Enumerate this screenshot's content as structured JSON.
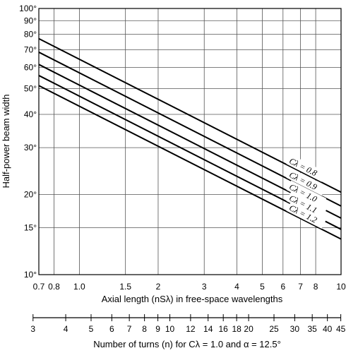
{
  "chart_data": {
    "type": "line",
    "xscale": "log",
    "yscale": "log",
    "xlim": [
      0.7,
      10
    ],
    "ylim": [
      10,
      100
    ],
    "grid": true,
    "xlabel": "Axial length (nS_λ) in free-space wavelengths",
    "ylabel": "Half-power beam width",
    "x_ticks": [
      "0.7",
      "0.8",
      "1.0",
      "1.5",
      "2",
      "3",
      "4",
      "5",
      "6",
      "7",
      "8",
      "10"
    ],
    "x_tick_values": [
      0.7,
      0.8,
      1.0,
      1.5,
      2,
      3,
      4,
      5,
      6,
      7,
      8,
      10
    ],
    "y_ticks": [
      "100°",
      "90°",
      "80°",
      "70°",
      "60°",
      "50°",
      "40°",
      "30°",
      "20°",
      "15°",
      "10°"
    ],
    "y_tick_values": [
      100,
      90,
      80,
      70,
      60,
      50,
      40,
      30,
      20,
      15,
      10
    ],
    "series": [
      {
        "name": "Cλ = 0.8",
        "points": [
          [
            0.7,
            77
          ],
          [
            10,
            20.4
          ]
        ]
      },
      {
        "name": "Cλ = 0.9",
        "points": [
          [
            0.7,
            68.5
          ],
          [
            10,
            18.1
          ]
        ]
      },
      {
        "name": "Cλ = 1.0",
        "points": [
          [
            0.7,
            61.6
          ],
          [
            10,
            16.3
          ]
        ]
      },
      {
        "name": "Cλ = 1.1",
        "points": [
          [
            0.7,
            56
          ],
          [
            10,
            14.8
          ]
        ]
      },
      {
        "name": "Cλ = 1.2",
        "points": [
          [
            0.7,
            51.3
          ],
          [
            10,
            13.6
          ]
        ]
      }
    ],
    "secondary_axis": {
      "label": "Number of turns (n) for Cλ = 1.0 and α = 12.5°",
      "ticks": [
        "3",
        "4",
        "5",
        "6",
        "7",
        "8",
        "9",
        "10",
        "12",
        "14",
        "16",
        "18",
        "20",
        "25",
        "30",
        "35",
        "40",
        "45"
      ],
      "tick_values": [
        3,
        4,
        5,
        6,
        7,
        8,
        9,
        10,
        12,
        14,
        16,
        18,
        20,
        25,
        30,
        35,
        40,
        45
      ],
      "primary_per_unit": 0.2217
    }
  }
}
